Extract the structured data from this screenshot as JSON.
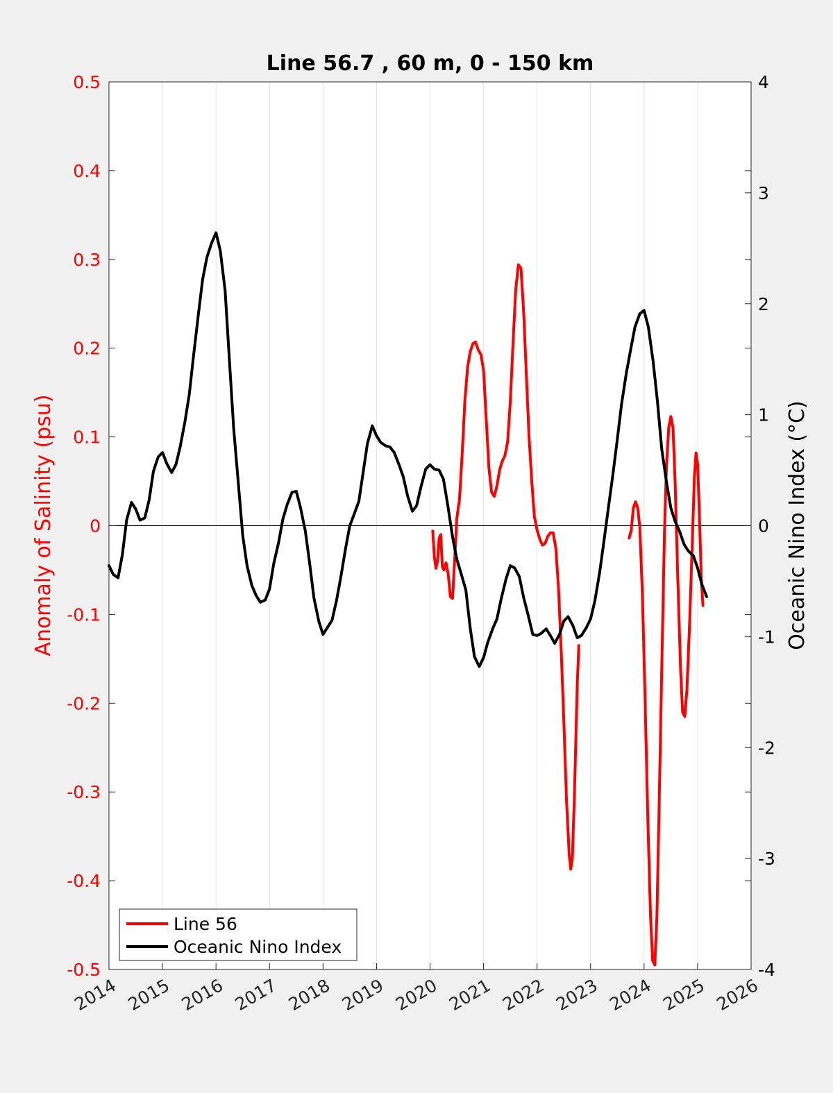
{
  "chart_data": {
    "type": "line",
    "title": "Line 56.7 , 60 m, 0 - 150 km",
    "ylabel": "Anomaly of Salinity (psu)",
    "y2label": "Oceanic Nino Index (°C)",
    "xlim": [
      2014,
      2026
    ],
    "ylim": [
      -0.5,
      0.5
    ],
    "y2lim": [
      -4,
      4
    ],
    "x_ticks": [
      2014,
      2015,
      2016,
      2017,
      2018,
      2019,
      2020,
      2021,
      2022,
      2023,
      2024,
      2025,
      2026
    ],
    "x_tick_labels": [
      "2014",
      "2015",
      "2016",
      "2017",
      "2018",
      "2019",
      "2020",
      "2021",
      "2022",
      "2023",
      "2024",
      "2025",
      "2026"
    ],
    "y_ticks": [
      0.5,
      0.4,
      0.3,
      0.2,
      0.1,
      0,
      -0.1,
      -0.2,
      -0.3,
      -0.4,
      -0.5
    ],
    "y_tick_labels": [
      "0.5",
      "0.4",
      "0.3",
      "0.2",
      "0.1",
      "0",
      "-0.1",
      "-0.2",
      "-0.3",
      "-0.4",
      "-0.5"
    ],
    "y2_ticks": [
      4,
      3,
      2,
      1,
      0,
      -1,
      -2,
      -3,
      -4
    ],
    "y2_tick_labels": [
      "4",
      "3",
      "2",
      "1",
      "0",
      "-1",
      "-2",
      "-3",
      "-4"
    ],
    "grid": "vertical",
    "legend_position": "bottom-left",
    "colors": {
      "salinity": "#ff0000",
      "oni": "#000000",
      "left_axis": "#ff0000",
      "right_axis": "#000000"
    },
    "series": [
      {
        "name": "Line 56",
        "axis": "left",
        "color": "#ff0000",
        "segments": [
          [
            [
              2020.05,
              -0.006
            ],
            [
              2020.08,
              -0.035
            ],
            [
              2020.11,
              -0.048
            ],
            [
              2020.14,
              -0.04
            ],
            [
              2020.17,
              -0.014
            ],
            [
              2020.2,
              -0.01
            ],
            [
              2020.23,
              -0.046
            ],
            [
              2020.26,
              -0.05
            ],
            [
              2020.3,
              -0.042
            ],
            [
              2020.34,
              -0.055
            ],
            [
              2020.38,
              -0.08
            ],
            [
              2020.42,
              -0.082
            ],
            [
              2020.46,
              -0.038
            ],
            [
              2020.5,
              0.008
            ],
            [
              2020.55,
              0.03
            ],
            [
              2020.6,
              0.08
            ],
            [
              2020.65,
              0.14
            ],
            [
              2020.7,
              0.178
            ],
            [
              2020.75,
              0.196
            ],
            [
              2020.8,
              0.205
            ],
            [
              2020.85,
              0.207
            ],
            [
              2020.9,
              0.198
            ],
            [
              2020.95,
              0.193
            ],
            [
              2021.0,
              0.175
            ],
            [
              2021.05,
              0.12
            ],
            [
              2021.1,
              0.065
            ],
            [
              2021.15,
              0.038
            ],
            [
              2021.2,
              0.033
            ],
            [
              2021.25,
              0.045
            ],
            [
              2021.3,
              0.063
            ],
            [
              2021.35,
              0.073
            ],
            [
              2021.4,
              0.079
            ],
            [
              2021.45,
              0.095
            ],
            [
              2021.5,
              0.14
            ],
            [
              2021.55,
              0.205
            ],
            [
              2021.6,
              0.265
            ],
            [
              2021.65,
              0.294
            ],
            [
              2021.7,
              0.29
            ],
            [
              2021.75,
              0.24
            ],
            [
              2021.8,
              0.17
            ],
            [
              2021.85,
              0.1
            ],
            [
              2021.9,
              0.05
            ],
            [
              2021.95,
              0.01
            ],
            [
              2022.0,
              -0.005
            ],
            [
              2022.05,
              -0.015
            ],
            [
              2022.1,
              -0.022
            ],
            [
              2022.15,
              -0.02
            ],
            [
              2022.2,
              -0.012
            ],
            [
              2022.25,
              -0.008
            ],
            [
              2022.3,
              -0.008
            ],
            [
              2022.35,
              -0.025
            ],
            [
              2022.4,
              -0.07
            ],
            [
              2022.45,
              -0.14
            ],
            [
              2022.5,
              -0.22
            ],
            [
              2022.55,
              -0.31
            ],
            [
              2022.6,
              -0.37
            ],
            [
              2022.63,
              -0.387
            ],
            [
              2022.66,
              -0.375
            ],
            [
              2022.7,
              -0.3
            ],
            [
              2022.75,
              -0.18
            ],
            [
              2022.78,
              -0.135
            ]
          ],
          [
            [
              2023.72,
              -0.014
            ],
            [
              2023.76,
              -0.005
            ],
            [
              2023.8,
              0.02
            ],
            [
              2023.84,
              0.027
            ],
            [
              2023.88,
              0.02
            ],
            [
              2023.92,
              -0.002
            ],
            [
              2023.97,
              -0.08
            ],
            [
              2024.02,
              -0.2
            ],
            [
              2024.07,
              -0.33
            ],
            [
              2024.12,
              -0.44
            ],
            [
              2024.16,
              -0.49
            ],
            [
              2024.2,
              -0.495
            ],
            [
              2024.24,
              -0.44
            ],
            [
              2024.28,
              -0.32
            ],
            [
              2024.33,
              -0.16
            ],
            [
              2024.38,
              -0.01
            ],
            [
              2024.42,
              0.07
            ],
            [
              2024.46,
              0.11
            ],
            [
              2024.5,
              0.123
            ],
            [
              2024.54,
              0.11
            ],
            [
              2024.58,
              0.05
            ],
            [
              2024.63,
              -0.06
            ],
            [
              2024.68,
              -0.16
            ],
            [
              2024.72,
              -0.21
            ],
            [
              2024.76,
              -0.215
            ],
            [
              2024.8,
              -0.185
            ],
            [
              2024.85,
              -0.11
            ],
            [
              2024.9,
              -0.02
            ],
            [
              2024.94,
              0.055
            ],
            [
              2024.97,
              0.082
            ],
            [
              2025.0,
              0.07
            ],
            [
              2025.03,
              0.02
            ],
            [
              2025.07,
              -0.06
            ],
            [
              2025.1,
              -0.09
            ]
          ]
        ]
      },
      {
        "name": "Oceanic Nino Index",
        "axis": "right",
        "color": "#000000",
        "segments": [
          [
            [
              2014.0,
              -0.36
            ],
            [
              2014.08,
              -0.44
            ],
            [
              2014.17,
              -0.47
            ],
            [
              2014.25,
              -0.26
            ],
            [
              2014.33,
              0.05
            ],
            [
              2014.42,
              0.21
            ],
            [
              2014.5,
              0.15
            ],
            [
              2014.58,
              0.05
            ],
            [
              2014.67,
              0.07
            ],
            [
              2014.75,
              0.23
            ],
            [
              2014.83,
              0.49
            ],
            [
              2014.92,
              0.62
            ],
            [
              2015.0,
              0.66
            ],
            [
              2015.08,
              0.56
            ],
            [
              2015.17,
              0.48
            ],
            [
              2015.25,
              0.55
            ],
            [
              2015.33,
              0.71
            ],
            [
              2015.42,
              0.94
            ],
            [
              2015.5,
              1.18
            ],
            [
              2015.58,
              1.53
            ],
            [
              2015.67,
              1.9
            ],
            [
              2015.75,
              2.22
            ],
            [
              2015.83,
              2.42
            ],
            [
              2015.92,
              2.55
            ],
            [
              2016.0,
              2.64
            ],
            [
              2016.08,
              2.48
            ],
            [
              2016.17,
              2.12
            ],
            [
              2016.25,
              1.5
            ],
            [
              2016.33,
              0.88
            ],
            [
              2016.42,
              0.37
            ],
            [
              2016.5,
              -0.09
            ],
            [
              2016.58,
              -0.36
            ],
            [
              2016.67,
              -0.54
            ],
            [
              2016.75,
              -0.63
            ],
            [
              2016.83,
              -0.69
            ],
            [
              2016.92,
              -0.67
            ],
            [
              2017.0,
              -0.57
            ],
            [
              2017.08,
              -0.34
            ],
            [
              2017.17,
              -0.15
            ],
            [
              2017.25,
              0.06
            ],
            [
              2017.33,
              0.19
            ],
            [
              2017.42,
              0.3
            ],
            [
              2017.5,
              0.31
            ],
            [
              2017.58,
              0.16
            ],
            [
              2017.67,
              -0.05
            ],
            [
              2017.75,
              -0.34
            ],
            [
              2017.83,
              -0.65
            ],
            [
              2017.92,
              -0.86
            ],
            [
              2018.0,
              -0.98
            ],
            [
              2018.08,
              -0.92
            ],
            [
              2018.17,
              -0.85
            ],
            [
              2018.25,
              -0.68
            ],
            [
              2018.33,
              -0.47
            ],
            [
              2018.42,
              -0.21
            ],
            [
              2018.5,
              0.0
            ],
            [
              2018.58,
              0.1
            ],
            [
              2018.67,
              0.22
            ],
            [
              2018.75,
              0.48
            ],
            [
              2018.83,
              0.74
            ],
            [
              2018.92,
              0.9
            ],
            [
              2019.0,
              0.81
            ],
            [
              2019.08,
              0.75
            ],
            [
              2019.17,
              0.72
            ],
            [
              2019.25,
              0.71
            ],
            [
              2019.33,
              0.66
            ],
            [
              2019.42,
              0.55
            ],
            [
              2019.5,
              0.44
            ],
            [
              2019.58,
              0.27
            ],
            [
              2019.67,
              0.13
            ],
            [
              2019.75,
              0.18
            ],
            [
              2019.83,
              0.35
            ],
            [
              2019.92,
              0.51
            ],
            [
              2020.0,
              0.55
            ],
            [
              2020.08,
              0.51
            ],
            [
              2020.17,
              0.5
            ],
            [
              2020.25,
              0.42
            ],
            [
              2020.33,
              0.19
            ],
            [
              2020.42,
              -0.1
            ],
            [
              2020.5,
              -0.3
            ],
            [
              2020.58,
              -0.43
            ],
            [
              2020.67,
              -0.58
            ],
            [
              2020.75,
              -0.92
            ],
            [
              2020.83,
              -1.18
            ],
            [
              2020.92,
              -1.27
            ],
            [
              2021.0,
              -1.19
            ],
            [
              2021.08,
              -1.05
            ],
            [
              2021.17,
              -0.93
            ],
            [
              2021.25,
              -0.84
            ],
            [
              2021.33,
              -0.66
            ],
            [
              2021.42,
              -0.48
            ],
            [
              2021.5,
              -0.36
            ],
            [
              2021.58,
              -0.38
            ],
            [
              2021.67,
              -0.46
            ],
            [
              2021.75,
              -0.65
            ],
            [
              2021.83,
              -0.8
            ],
            [
              2021.92,
              -0.98
            ],
            [
              2022.0,
              -0.99
            ],
            [
              2022.08,
              -0.97
            ],
            [
              2022.17,
              -0.93
            ],
            [
              2022.25,
              -0.99
            ],
            [
              2022.33,
              -1.06
            ],
            [
              2022.42,
              -0.98
            ],
            [
              2022.5,
              -0.86
            ],
            [
              2022.58,
              -0.82
            ],
            [
              2022.67,
              -0.9
            ],
            [
              2022.75,
              -1.01
            ],
            [
              2022.83,
              -0.99
            ],
            [
              2022.92,
              -0.92
            ],
            [
              2023.0,
              -0.84
            ],
            [
              2023.08,
              -0.68
            ],
            [
              2023.17,
              -0.42
            ],
            [
              2023.25,
              -0.14
            ],
            [
              2023.33,
              0.15
            ],
            [
              2023.42,
              0.47
            ],
            [
              2023.5,
              0.78
            ],
            [
              2023.58,
              1.1
            ],
            [
              2023.67,
              1.38
            ],
            [
              2023.75,
              1.59
            ],
            [
              2023.83,
              1.79
            ],
            [
              2023.92,
              1.91
            ],
            [
              2024.0,
              1.94
            ],
            [
              2024.08,
              1.79
            ],
            [
              2024.17,
              1.48
            ],
            [
              2024.25,
              1.12
            ],
            [
              2024.33,
              0.69
            ],
            [
              2024.42,
              0.39
            ],
            [
              2024.5,
              0.16
            ],
            [
              2024.58,
              0.04
            ],
            [
              2024.67,
              -0.06
            ],
            [
              2024.75,
              -0.17
            ],
            [
              2024.83,
              -0.23
            ],
            [
              2024.92,
              -0.27
            ],
            [
              2025.0,
              -0.38
            ],
            [
              2025.08,
              -0.53
            ],
            [
              2025.17,
              -0.64
            ]
          ]
        ]
      }
    ]
  }
}
